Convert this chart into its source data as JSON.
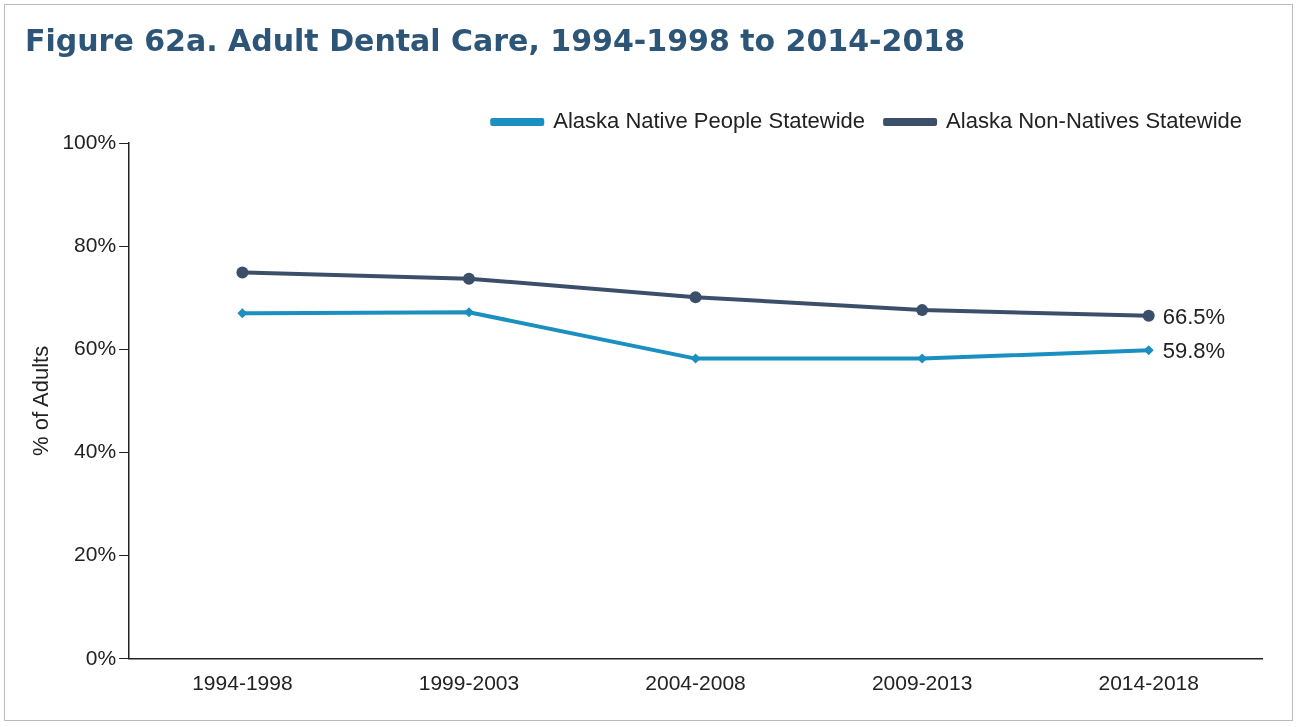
{
  "chart_data": {
    "type": "line",
    "title": "Figure 62a. Adult Dental Care, 1994-1998 to 2014-2018",
    "ylabel": "% of Adults",
    "categories": [
      "1994-1998",
      "1999-2003",
      "2004-2008",
      "2009-2013",
      "2014-2018"
    ],
    "series": [
      {
        "name": "Alaska Native People Statewide",
        "color": "#1b8fc0",
        "marker": "diamond",
        "values": [
          67.0,
          67.2,
          58.2,
          58.2,
          59.8
        ],
        "value_labels": [
          null,
          null,
          null,
          null,
          "59.8%"
        ]
      },
      {
        "name": "Alaska Non-Natives Statewide",
        "color": "#3b4f6b",
        "marker": "circle",
        "values": [
          74.9,
          73.7,
          70.1,
          67.6,
          66.5
        ],
        "value_labels": [
          null,
          null,
          null,
          null,
          "66.5%"
        ]
      }
    ],
    "ylim": [
      0,
      100
    ],
    "yticks": [
      {
        "value": 0,
        "label": "0%"
      },
      {
        "value": 20,
        "label": "20%"
      },
      {
        "value": 40,
        "label": "40%"
      },
      {
        "value": 60,
        "label": "60%"
      },
      {
        "value": 80,
        "label": "80%"
      },
      {
        "value": 100,
        "label": "100%"
      }
    ],
    "grid": false,
    "legend": "top right",
    "line_style": "solid"
  }
}
